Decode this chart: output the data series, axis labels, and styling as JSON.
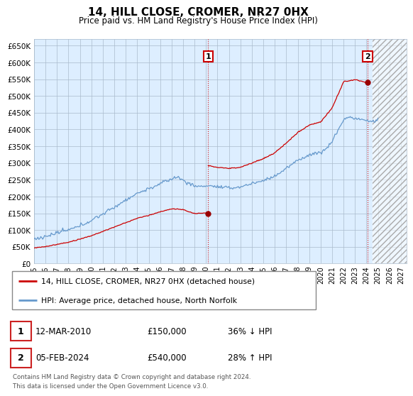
{
  "title": "14, HILL CLOSE, CROMER, NR27 0HX",
  "subtitle": "Price paid vs. HM Land Registry's House Price Index (HPI)",
  "ylabel_ticks": [
    0,
    50000,
    100000,
    150000,
    200000,
    250000,
    300000,
    350000,
    400000,
    450000,
    500000,
    550000,
    600000,
    650000
  ],
  "ylim": [
    0,
    670000
  ],
  "xlim_start": 1995.0,
  "xlim_end": 2027.5,
  "x_ticks": [
    1995,
    1996,
    1997,
    1998,
    1999,
    2000,
    2001,
    2002,
    2003,
    2004,
    2005,
    2006,
    2007,
    2008,
    2009,
    2010,
    2011,
    2012,
    2013,
    2014,
    2015,
    2016,
    2017,
    2018,
    2019,
    2020,
    2021,
    2022,
    2023,
    2024,
    2025,
    2026,
    2027
  ],
  "hpi_color": "#6699cc",
  "price_color": "#cc0000",
  "bg_color": "#ffffff",
  "plot_bg_color": "#ddeeff",
  "grid_color": "#aabbcc",
  "transaction1": {
    "date": "12-MAR-2010",
    "price": 150000,
    "year": 2010.19,
    "pct": "36%",
    "dir": "↓",
    "label": "1"
  },
  "transaction2": {
    "date": "05-FEB-2024",
    "price": 540000,
    "year": 2024.09,
    "pct": "28%",
    "dir": "↑",
    "label": "2"
  },
  "legend_line1": "14, HILL CLOSE, CROMER, NR27 0HX (detached house)",
  "legend_line2": "HPI: Average price, detached house, North Norfolk",
  "footnote": "Contains HM Land Registry data © Crown copyright and database right 2024.\nThis data is licensed under the Open Government Licence v3.0.",
  "hatch_start": 2024.5
}
